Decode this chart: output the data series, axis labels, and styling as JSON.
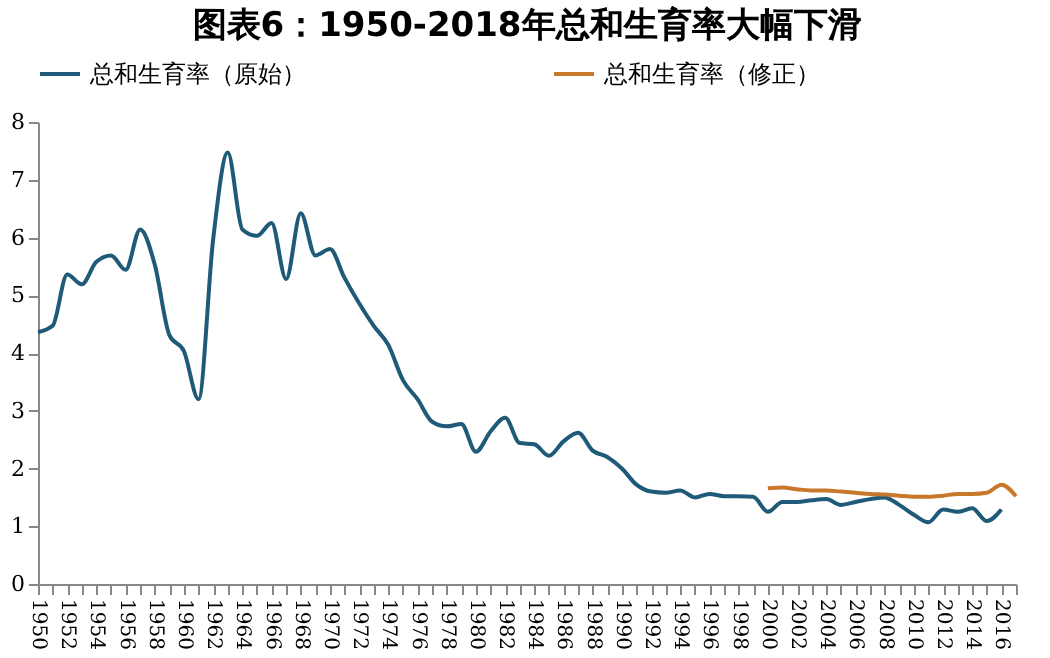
{
  "chart_data": {
    "type": "line",
    "title": "图表6：1950-2018年总和生育率大幅下滑",
    "series": [
      {
        "name": "总和生育率（原始）",
        "color": "#1f5a78",
        "x": [
          1950,
          1951,
          1952,
          1953,
          1954,
          1955,
          1956,
          1957,
          1958,
          1959,
          1960,
          1961,
          1962,
          1963,
          1964,
          1965,
          1966,
          1967,
          1968,
          1969,
          1970,
          1971,
          1972,
          1973,
          1974,
          1975,
          1976,
          1977,
          1978,
          1979,
          1980,
          1981,
          1982,
          1983,
          1984,
          1985,
          1986,
          1987,
          1988,
          1989,
          1990,
          1991,
          1992,
          1993,
          1994,
          1995,
          1996,
          1997,
          1998,
          1999,
          2000,
          2001,
          2002,
          2003,
          2004,
          2005,
          2006,
          2007,
          2008,
          2009,
          2010,
          2011,
          2012,
          2013,
          2014,
          2015,
          2016
        ],
        "values": [
          4.36,
          4.47,
          5.36,
          5.19,
          5.58,
          5.69,
          5.44,
          6.14,
          5.53,
          4.31,
          4.03,
          3.2,
          5.97,
          7.47,
          6.14,
          6.03,
          6.25,
          5.28,
          6.42,
          5.69,
          5.8,
          5.3,
          4.86,
          4.47,
          4.14,
          3.53,
          3.2,
          2.81,
          2.73,
          2.77,
          2.29,
          2.64,
          2.88,
          2.44,
          2.42,
          2.22,
          2.47,
          2.62,
          2.31,
          2.2,
          2.0,
          1.72,
          1.6,
          1.58,
          1.62,
          1.5,
          1.56,
          1.52,
          1.52,
          1.51,
          1.25,
          1.42,
          1.42,
          1.45,
          1.47,
          1.37,
          1.42,
          1.47,
          1.5,
          1.37,
          1.2,
          1.07,
          1.29,
          1.25,
          1.31,
          1.09,
          1.29
        ]
      },
      {
        "name": "总和生育率（修正）",
        "color": "#c8782a",
        "x": [
          2000,
          2001,
          2002,
          2003,
          2004,
          2005,
          2006,
          2007,
          2008,
          2009,
          2010,
          2011,
          2012,
          2013,
          2014,
          2015,
          2016,
          2017
        ],
        "values": [
          1.66,
          1.67,
          1.64,
          1.62,
          1.62,
          1.6,
          1.58,
          1.56,
          1.55,
          1.53,
          1.51,
          1.51,
          1.53,
          1.56,
          1.56,
          1.58,
          1.72,
          1.52
        ]
      }
    ],
    "xlim": [
      1950,
      2017
    ],
    "xticks": [
      1950,
      {
        "value": 1951,
        "label": null
      },
      1952,
      {
        "value": 1953,
        "label": null
      },
      1954,
      {
        "value": 1955,
        "label": null
      },
      1956,
      {
        "value": 1957,
        "label": null
      },
      1958,
      {
        "value": 1959,
        "label": null
      },
      1960,
      {
        "value": 1961,
        "label": null
      },
      1962,
      {
        "value": 1963,
        "label": null
      },
      1964,
      {
        "value": 1965,
        "label": null
      },
      1966,
      {
        "value": 1967,
        "label": null
      },
      1968,
      {
        "value": 1969,
        "label": null
      },
      1970,
      {
        "value": 1971,
        "label": null
      },
      1972,
      {
        "value": 1973,
        "label": null
      },
      1974,
      {
        "value": 1975,
        "label": null
      },
      1976,
      {
        "value": 1977,
        "label": null
      },
      1978,
      {
        "value": 1979,
        "label": null
      },
      1980,
      {
        "value": 1981,
        "label": null
      },
      1982,
      {
        "value": 1983,
        "label": null
      },
      1984,
      {
        "value": 1985,
        "label": null
      },
      1986,
      {
        "value": 1987,
        "label": null
      },
      1988,
      {
        "value": 1989,
        "label": null
      },
      1990,
      {
        "value": 1991,
        "label": null
      },
      1992,
      {
        "value": 1993,
        "label": null
      },
      1994,
      {
        "value": 1995,
        "label": null
      },
      1996,
      {
        "value": 1997,
        "label": null
      },
      1998,
      {
        "value": 1999,
        "label": null
      },
      2000,
      {
        "value": 2001,
        "label": null
      },
      2002,
      {
        "value": 2003,
        "label": null
      },
      2004,
      {
        "value": 2005,
        "label": null
      },
      2006,
      {
        "value": 2007,
        "label": null
      },
      2008,
      {
        "value": 2009,
        "label": null
      },
      2010,
      {
        "value": 2011,
        "label": null
      },
      2012,
      {
        "value": 2013,
        "label": null
      },
      2014,
      {
        "value": 2015,
        "label": null
      },
      2016,
      {
        "value": 2017,
        "label": null
      }
    ],
    "ylim": [
      0,
      8
    ],
    "yticks": [
      0,
      1,
      2,
      3,
      4,
      5,
      6,
      7,
      8
    ],
    "grid": false,
    "legend": "top",
    "marker": "none",
    "line_style": "solid"
  }
}
